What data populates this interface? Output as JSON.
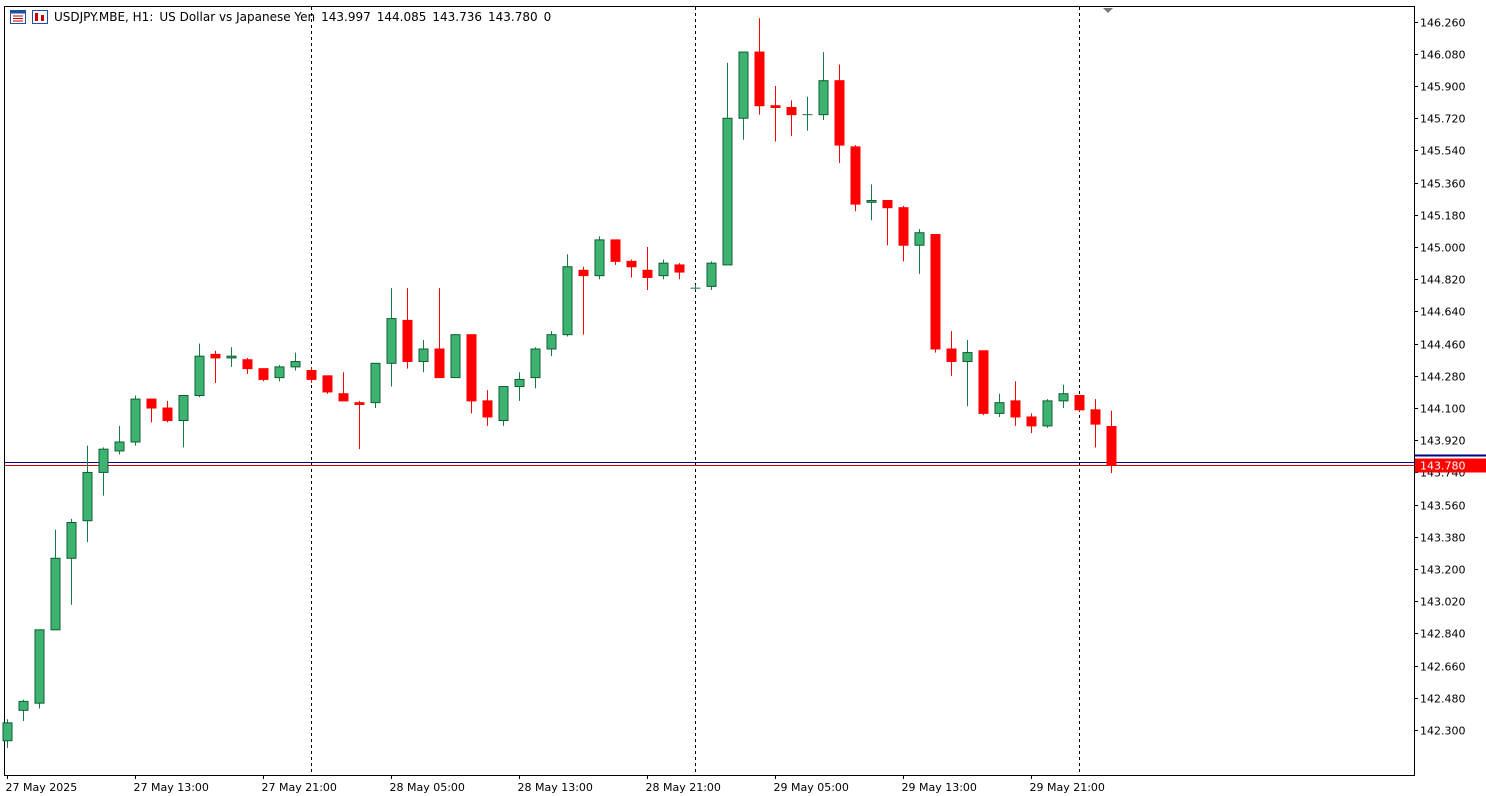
{
  "header": {
    "symbol": "USDJPY.MBE, H1:",
    "description": "US Dollar vs Japanese Yen",
    "open": "143.997",
    "high": "144.085",
    "low": "143.736",
    "close": "143.780",
    "volume": "0"
  },
  "colors": {
    "bull": "#3cb371",
    "bear": "#ff0000",
    "outline": "#000000",
    "doji": "#00dd00",
    "grid": "#000000",
    "bid_line": "#cc0000",
    "ask_line": "#000080",
    "price_label_bg": "#ff0000"
  },
  "chart_data": {
    "type": "candlestick",
    "title": "USDJPY.MBE, H1:  US Dollar vs Japanese Yen",
    "ylim": [
      142.2,
      146.32
    ],
    "y_ticks": [
      "146.260",
      "146.080",
      "145.900",
      "145.720",
      "145.540",
      "145.360",
      "145.180",
      "145.000",
      "144.820",
      "144.640",
      "144.460",
      "144.280",
      "144.100",
      "143.920",
      "143.740",
      "143.560",
      "143.380",
      "143.200",
      "143.020",
      "142.840",
      "142.660",
      "142.480",
      "142.300"
    ],
    "x_tick_labels": [
      "27 May 2025",
      "27 May 13:00",
      "27 May 21:00",
      "28 May 05:00",
      "28 May 13:00",
      "28 May 21:00",
      "29 May 05:00",
      "29 May 13:00",
      "29 May 21:00"
    ],
    "x_tick_bar_index": [
      0,
      8,
      16,
      24,
      32,
      40,
      48,
      56,
      64
    ],
    "period_separators_bar_index": [
      19,
      43,
      67
    ],
    "current_price": "143.780",
    "bid_price": 143.78,
    "ask_price": 143.797,
    "bars": [
      {
        "o": 142.24,
        "h": 142.36,
        "l": 142.2,
        "c": 142.34
      },
      {
        "o": 142.41,
        "h": 142.47,
        "l": 142.35,
        "c": 142.46
      },
      {
        "o": 142.45,
        "h": 142.86,
        "l": 142.42,
        "c": 142.86
      },
      {
        "o": 142.86,
        "h": 143.42,
        "l": 142.86,
        "c": 143.26
      },
      {
        "o": 143.26,
        "h": 143.48,
        "l": 143.0,
        "c": 143.46
      },
      {
        "o": 143.47,
        "h": 143.89,
        "l": 143.35,
        "c": 143.74
      },
      {
        "o": 143.74,
        "h": 143.88,
        "l": 143.61,
        "c": 143.87
      },
      {
        "o": 143.86,
        "h": 144.0,
        "l": 143.84,
        "c": 143.91
      },
      {
        "o": 143.91,
        "h": 144.17,
        "l": 143.89,
        "c": 144.15
      },
      {
        "o": 144.15,
        "h": 144.15,
        "l": 144.02,
        "c": 144.1
      },
      {
        "o": 144.1,
        "h": 144.14,
        "l": 144.02,
        "c": 144.03
      },
      {
        "o": 144.03,
        "h": 144.17,
        "l": 143.88,
        "c": 144.17
      },
      {
        "o": 144.17,
        "h": 144.46,
        "l": 144.16,
        "c": 144.39
      },
      {
        "o": 144.4,
        "h": 144.42,
        "l": 144.24,
        "c": 144.38
      },
      {
        "o": 144.38,
        "h": 144.44,
        "l": 144.33,
        "c": 144.39
      },
      {
        "o": 144.37,
        "h": 144.38,
        "l": 144.29,
        "c": 144.32
      },
      {
        "o": 144.32,
        "h": 144.32,
        "l": 144.25,
        "c": 144.26
      },
      {
        "o": 144.27,
        "h": 144.34,
        "l": 144.25,
        "c": 144.33
      },
      {
        "o": 144.33,
        "h": 144.41,
        "l": 144.31,
        "c": 144.36
      },
      {
        "o": 144.31,
        "h": 144.33,
        "l": 144.24,
        "c": 144.26
      },
      {
        "o": 144.28,
        "h": 144.28,
        "l": 144.18,
        "c": 144.19
      },
      {
        "o": 144.18,
        "h": 144.3,
        "l": 144.14,
        "c": 144.14
      },
      {
        "o": 144.13,
        "h": 144.14,
        "l": 143.87,
        "c": 144.12
      },
      {
        "o": 144.13,
        "h": 144.35,
        "l": 144.1,
        "c": 144.35
      },
      {
        "o": 144.35,
        "h": 144.77,
        "l": 144.22,
        "c": 144.6
      },
      {
        "o": 144.59,
        "h": 144.77,
        "l": 144.32,
        "c": 144.36
      },
      {
        "o": 144.36,
        "h": 144.48,
        "l": 144.3,
        "c": 144.43
      },
      {
        "o": 144.43,
        "h": 144.77,
        "l": 144.27,
        "c": 144.27
      },
      {
        "o": 144.27,
        "h": 144.51,
        "l": 144.27,
        "c": 144.51
      },
      {
        "o": 144.51,
        "h": 144.51,
        "l": 144.07,
        "c": 144.14
      },
      {
        "o": 144.14,
        "h": 144.2,
        "l": 144.0,
        "c": 144.05
      },
      {
        "o": 144.03,
        "h": 144.22,
        "l": 144.0,
        "c": 144.22
      },
      {
        "o": 144.22,
        "h": 144.3,
        "l": 144.14,
        "c": 144.26
      },
      {
        "o": 144.27,
        "h": 144.44,
        "l": 144.21,
        "c": 144.43
      },
      {
        "o": 144.43,
        "h": 144.53,
        "l": 144.39,
        "c": 144.51
      },
      {
        "o": 144.51,
        "h": 144.96,
        "l": 144.5,
        "c": 144.89
      },
      {
        "o": 144.87,
        "h": 144.89,
        "l": 144.51,
        "c": 144.84
      },
      {
        "o": 144.84,
        "h": 145.06,
        "l": 144.82,
        "c": 145.04
      },
      {
        "o": 145.04,
        "h": 145.04,
        "l": 144.9,
        "c": 144.92
      },
      {
        "o": 144.92,
        "h": 144.93,
        "l": 144.83,
        "c": 144.89
      },
      {
        "o": 144.87,
        "h": 145.0,
        "l": 144.76,
        "c": 144.83
      },
      {
        "o": 144.84,
        "h": 144.93,
        "l": 144.82,
        "c": 144.91
      },
      {
        "o": 144.9,
        "h": 144.91,
        "l": 144.82,
        "c": 144.86
      },
      {
        "o": 144.77,
        "h": 144.79,
        "l": 144.76,
        "c": 144.77
      },
      {
        "o": 144.78,
        "h": 144.92,
        "l": 144.76,
        "c": 144.91
      },
      {
        "o": 144.9,
        "h": 146.03,
        "l": 144.9,
        "c": 145.72
      },
      {
        "o": 145.72,
        "h": 146.09,
        "l": 145.6,
        "c": 146.09
      },
      {
        "o": 146.09,
        "h": 146.28,
        "l": 145.74,
        "c": 145.79
      },
      {
        "o": 145.79,
        "h": 145.9,
        "l": 145.59,
        "c": 145.78
      },
      {
        "o": 145.78,
        "h": 145.82,
        "l": 145.62,
        "c": 145.74
      },
      {
        "o": 145.74,
        "h": 145.84,
        "l": 145.65,
        "c": 145.74
      },
      {
        "o": 145.74,
        "h": 146.09,
        "l": 145.71,
        "c": 145.93
      },
      {
        "o": 145.93,
        "h": 146.02,
        "l": 145.47,
        "c": 145.57
      },
      {
        "o": 145.56,
        "h": 145.57,
        "l": 145.2,
        "c": 145.24
      },
      {
        "o": 145.25,
        "h": 145.35,
        "l": 145.15,
        "c": 145.26
      },
      {
        "o": 145.26,
        "h": 145.26,
        "l": 145.01,
        "c": 145.22
      },
      {
        "o": 145.22,
        "h": 145.23,
        "l": 144.92,
        "c": 145.01
      },
      {
        "o": 145.01,
        "h": 145.1,
        "l": 144.85,
        "c": 145.08
      },
      {
        "o": 145.07,
        "h": 145.07,
        "l": 144.41,
        "c": 144.43
      },
      {
        "o": 144.43,
        "h": 144.53,
        "l": 144.28,
        "c": 144.36
      },
      {
        "o": 144.36,
        "h": 144.48,
        "l": 144.11,
        "c": 144.41
      },
      {
        "o": 144.42,
        "h": 144.42,
        "l": 144.06,
        "c": 144.07
      },
      {
        "o": 144.07,
        "h": 144.18,
        "l": 144.05,
        "c": 144.13
      },
      {
        "o": 144.14,
        "h": 144.25,
        "l": 144.0,
        "c": 144.05
      },
      {
        "o": 144.05,
        "h": 144.07,
        "l": 143.96,
        "c": 144.0
      },
      {
        "o": 144.0,
        "h": 144.15,
        "l": 143.99,
        "c": 144.14
      },
      {
        "o": 144.14,
        "h": 144.23,
        "l": 144.1,
        "c": 144.18
      },
      {
        "o": 144.17,
        "h": 144.17,
        "l": 144.08,
        "c": 144.09
      },
      {
        "o": 144.09,
        "h": 144.15,
        "l": 143.88,
        "c": 144.01
      },
      {
        "o": 143.997,
        "h": 144.085,
        "l": 143.736,
        "c": 143.78
      }
    ]
  }
}
